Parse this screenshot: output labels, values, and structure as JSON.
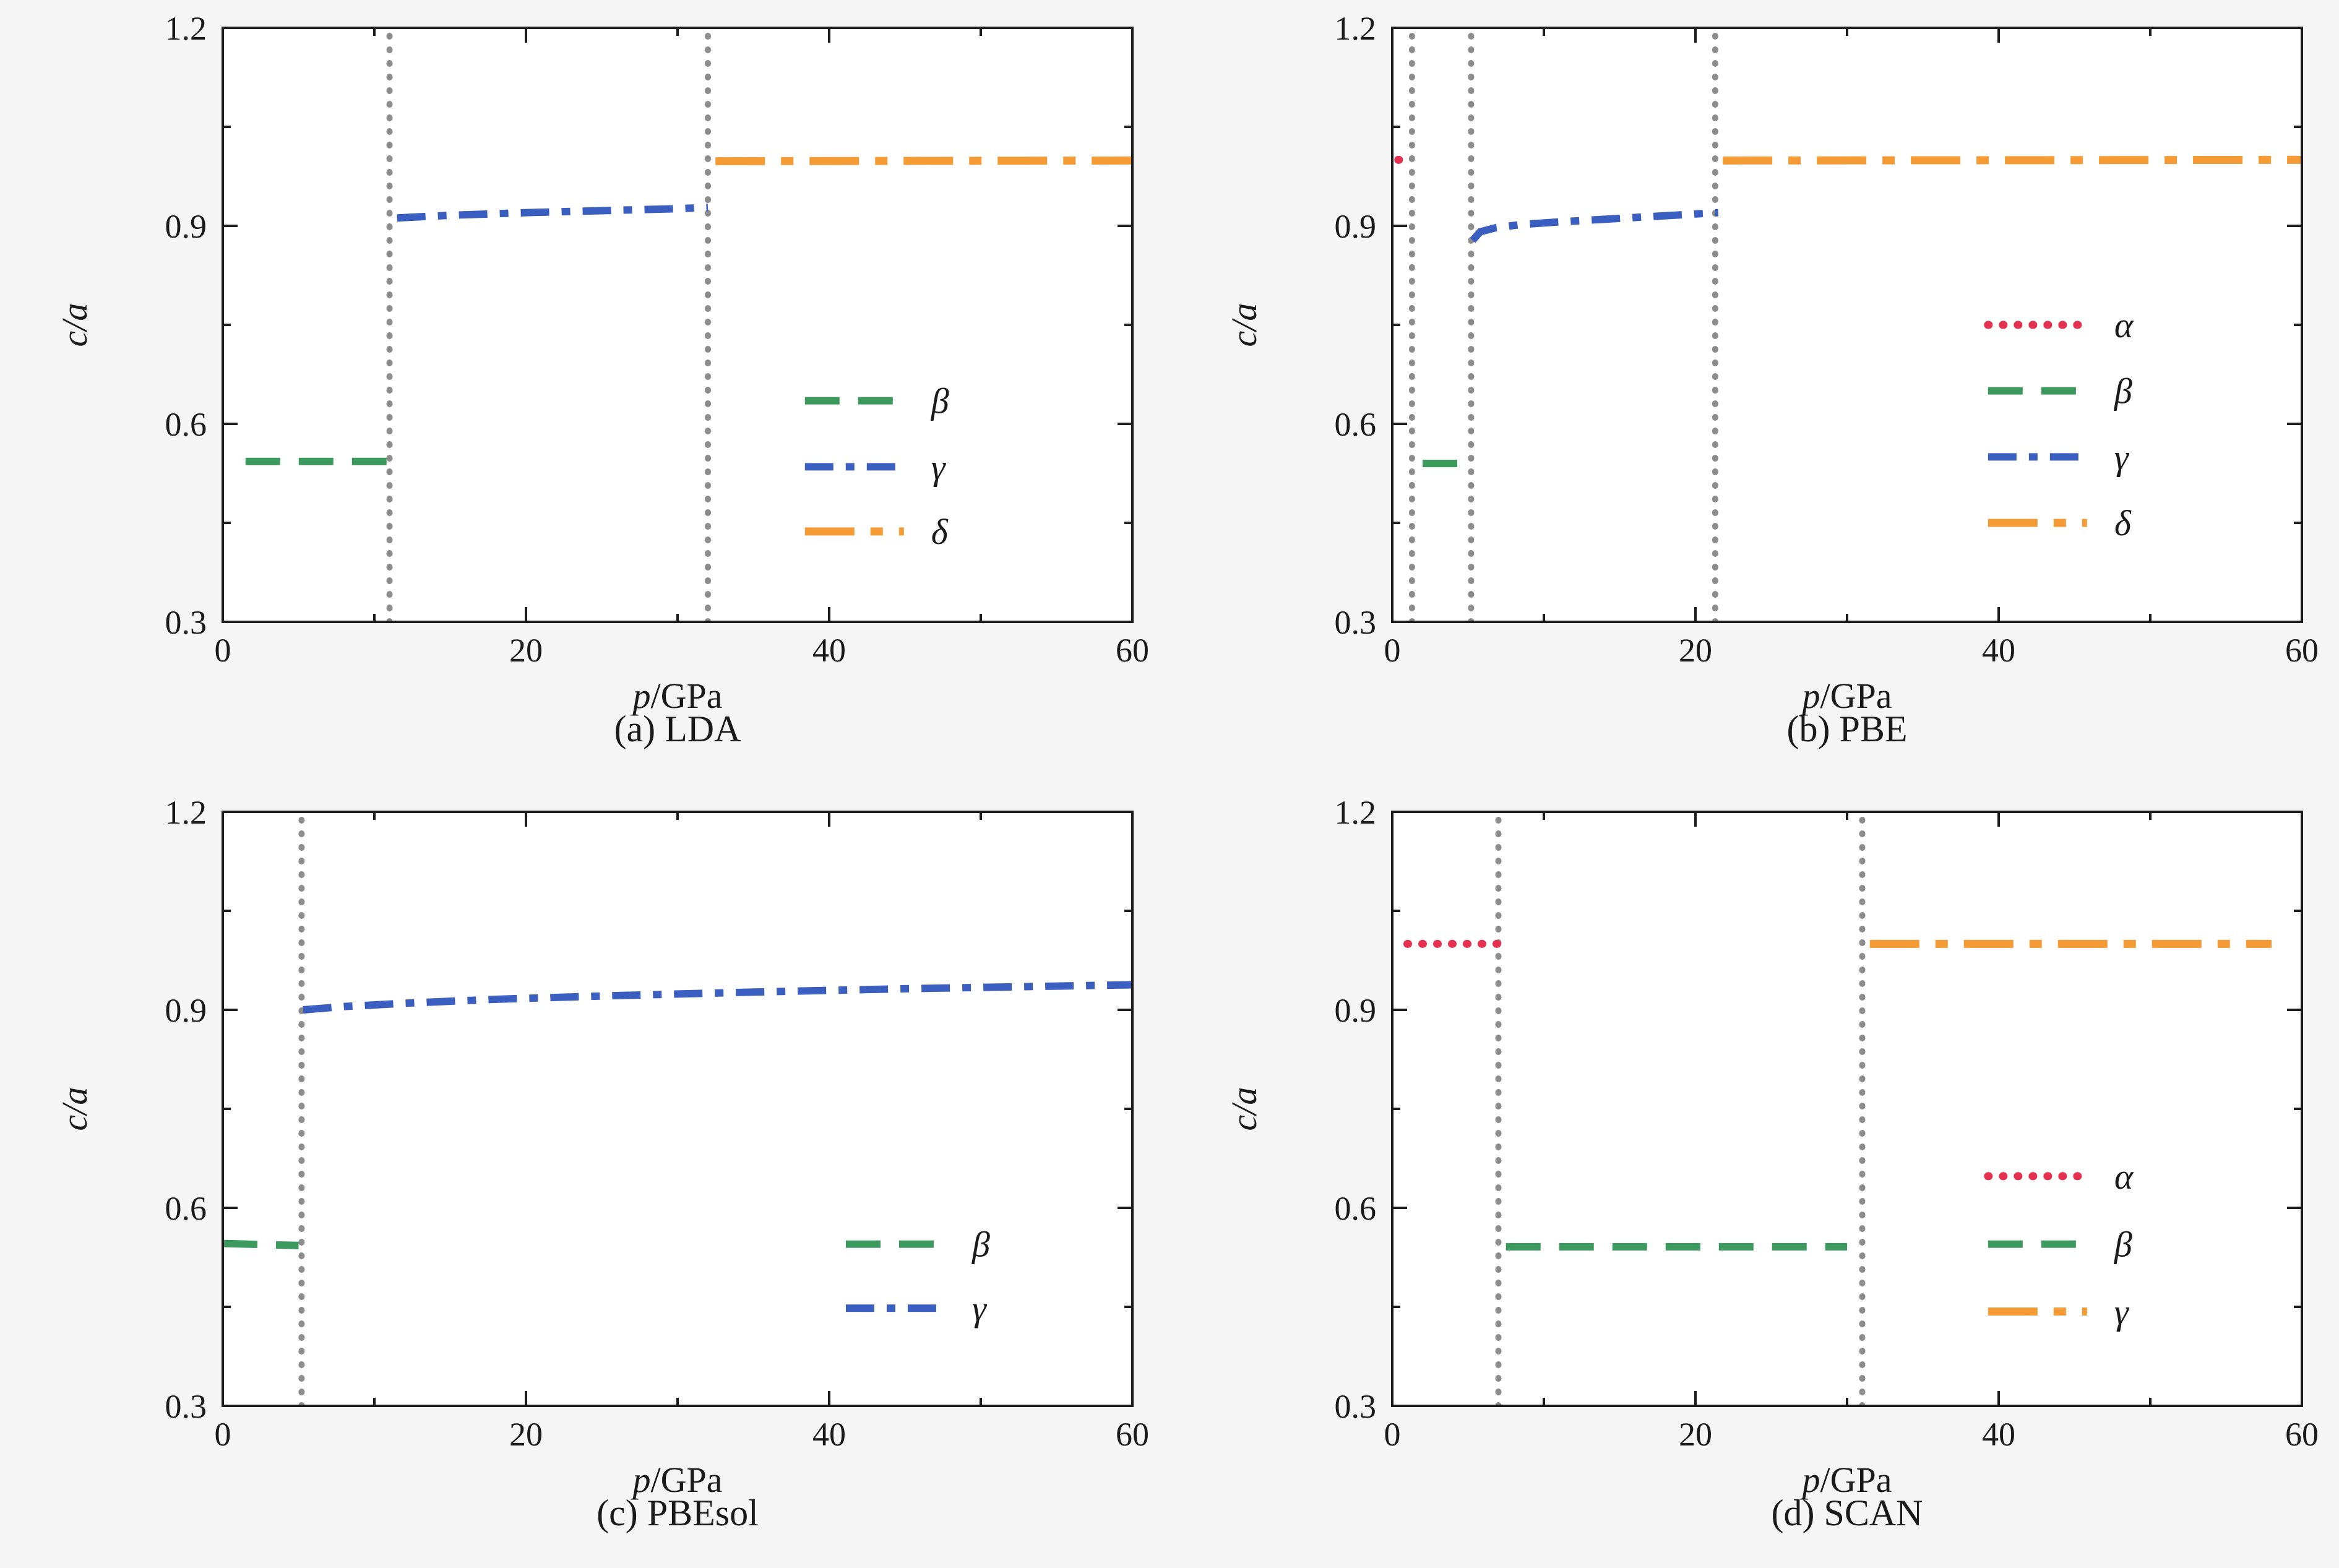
{
  "page": {
    "background": "#f5f5f6",
    "plot_background": "#ffffff",
    "axis_color": "#1c1c1c",
    "text_color": "#1a1a1a",
    "vline_color": "#8d8d8d"
  },
  "chart_data": [
    {
      "type": "line",
      "caption": "(a) LDA",
      "xlabel": {
        "italic": "p",
        "rest": "/GPa"
      },
      "ylabel": {
        "italic": "c/a",
        "rest": ""
      },
      "xlim": [
        0,
        60
      ],
      "ylim": [
        0.3,
        1.2
      ],
      "xticks": {
        "values": [
          0,
          20,
          40,
          60
        ],
        "labels": [
          "0",
          "20",
          "40",
          "60"
        ]
      },
      "yticks": {
        "values": [
          0.3,
          0.6,
          0.9,
          1.2
        ],
        "labels": [
          "0.3",
          "0.6",
          "0.9",
          "1.2"
        ]
      },
      "vlines": [
        11,
        32
      ],
      "series": [
        {
          "label": "β",
          "phase": "beta",
          "color": "#3c9a5f",
          "dash": "dashed",
          "points": [
            [
              1.5,
              0.543
            ],
            [
              11.0,
              0.543
            ]
          ]
        },
        {
          "label": "γ",
          "phase": "gamma",
          "color": "#3a5fc0",
          "dash": "dashdot",
          "points": [
            [
              11.5,
              0.912
            ],
            [
              15,
              0.916
            ],
            [
              20,
              0.92
            ],
            [
              25,
              0.923
            ],
            [
              30,
              0.926
            ],
            [
              32,
              0.928
            ]
          ]
        },
        {
          "label": "δ",
          "phase": "delta",
          "color": "#f49b35",
          "dash": "longdashdot",
          "points": [
            [
              32.5,
              0.998
            ],
            [
              60.4,
              0.999
            ]
          ]
        }
      ],
      "legend": {
        "x_frac": 0.64,
        "rows_y": [
          0.635,
          0.535,
          0.437
        ]
      }
    },
    {
      "type": "line",
      "caption": "(b) PBE",
      "xlabel": {
        "italic": "p",
        "rest": "/GPa"
      },
      "ylabel": {
        "italic": "c/a",
        "rest": ""
      },
      "xlim": [
        0,
        60
      ],
      "ylim": [
        0.3,
        1.2
      ],
      "xticks": {
        "values": [
          0,
          20,
          40,
          60
        ],
        "labels": [
          "0",
          "20",
          "40",
          "60"
        ]
      },
      "yticks": {
        "values": [
          0.3,
          0.6,
          0.9,
          1.2
        ],
        "labels": [
          "0.3",
          "0.6",
          "0.9",
          "1.2"
        ]
      },
      "vlines": [
        1.3,
        5.2,
        21.3
      ],
      "series": [
        {
          "label": "α",
          "phase": "alpha",
          "color": "#e5304f",
          "dash": "dotted",
          "points": [
            [
              0.4,
              1.0
            ],
            [
              1.25,
              1.0
            ]
          ]
        },
        {
          "label": "β",
          "phase": "beta",
          "color": "#3c9a5f",
          "dash": "dashed",
          "points": [
            [
              2.0,
              0.54
            ],
            [
              5.0,
              0.54
            ]
          ]
        },
        {
          "label": "γ",
          "phase": "gamma",
          "color": "#3a5fc0",
          "dash": "dashdot",
          "points": [
            [
              5.3,
              0.878
            ],
            [
              5.8,
              0.891
            ],
            [
              6.8,
              0.897
            ],
            [
              8.5,
              0.902
            ],
            [
              11,
              0.906
            ],
            [
              14,
              0.91
            ],
            [
              17,
              0.914
            ],
            [
              20,
              0.918
            ],
            [
              21.5,
              0.92
            ]
          ]
        },
        {
          "label": "δ",
          "phase": "delta",
          "color": "#f49b35",
          "dash": "longdashdot",
          "points": [
            [
              21.8,
              0.999
            ],
            [
              60.5,
              1.0
            ]
          ]
        }
      ],
      "legend": {
        "x_frac": 0.655,
        "rows_y": [
          0.75,
          0.65,
          0.55,
          0.45
        ]
      }
    },
    {
      "type": "line",
      "caption": "(c) PBEsol",
      "xlabel": {
        "italic": "p",
        "rest": "/GPa"
      },
      "ylabel": {
        "italic": "c/a",
        "rest": ""
      },
      "xlim": [
        0,
        60
      ],
      "ylim": [
        0.3,
        1.2
      ],
      "xticks": {
        "values": [
          0,
          20,
          40,
          60
        ],
        "labels": [
          "0",
          "20",
          "40",
          "60"
        ]
      },
      "yticks": {
        "values": [
          0.3,
          0.6,
          0.9,
          1.2
        ],
        "labels": [
          "0.3",
          "0.6",
          "0.9",
          "1.2"
        ]
      },
      "vlines": [
        5.2
      ],
      "series": [
        {
          "label": "β",
          "phase": "beta",
          "color": "#3c9a5f",
          "dash": "dashed",
          "points": [
            [
              0.0,
              0.546
            ],
            [
              5.0,
              0.543
            ]
          ]
        },
        {
          "label": "γ",
          "phase": "gamma",
          "color": "#3a5fc0",
          "dash": "dashdot",
          "points": [
            [
              5.3,
              0.9
            ],
            [
              8,
              0.905
            ],
            [
              12,
              0.91
            ],
            [
              18,
              0.916
            ],
            [
              25,
              0.921
            ],
            [
              35,
              0.927
            ],
            [
              45,
              0.932
            ],
            [
              55,
              0.936
            ],
            [
              60,
              0.938
            ]
          ]
        }
      ],
      "legend": {
        "x_frac": 0.685,
        "rows_y": [
          0.545,
          0.448
        ]
      }
    },
    {
      "type": "line",
      "caption": "(d) SCAN",
      "xlabel": {
        "italic": "p",
        "rest": "/GPa"
      },
      "ylabel": {
        "italic": "c/a",
        "rest": ""
      },
      "xlim": [
        0,
        60
      ],
      "ylim": [
        0.3,
        1.2
      ],
      "xticks": {
        "values": [
          0,
          20,
          40,
          60
        ],
        "labels": [
          "0",
          "20",
          "40",
          "60"
        ]
      },
      "yticks": {
        "values": [
          0.3,
          0.6,
          0.9,
          1.2
        ],
        "labels": [
          "0.3",
          "0.6",
          "0.9",
          "1.2"
        ]
      },
      "vlines": [
        7,
        31
      ],
      "series": [
        {
          "label": "α",
          "phase": "alpha",
          "color": "#e5304f",
          "dash": "dotted",
          "points": [
            [
              1.0,
              1.0
            ],
            [
              7.0,
              1.0
            ]
          ]
        },
        {
          "label": "β",
          "phase": "beta",
          "color": "#3c9a5f",
          "dash": "dashed",
          "points": [
            [
              7.5,
              0.541
            ],
            [
              30.0,
              0.541
            ]
          ]
        },
        {
          "label": "γ",
          "phase": "gamma",
          "color": "#f49b35",
          "dash": "longdashdot",
          "points": [
            [
              31.5,
              1.0
            ],
            [
              58.0,
              1.0
            ]
          ]
        }
      ],
      "legend": {
        "x_frac": 0.655,
        "rows_y": [
          0.648,
          0.545,
          0.443
        ]
      }
    }
  ]
}
